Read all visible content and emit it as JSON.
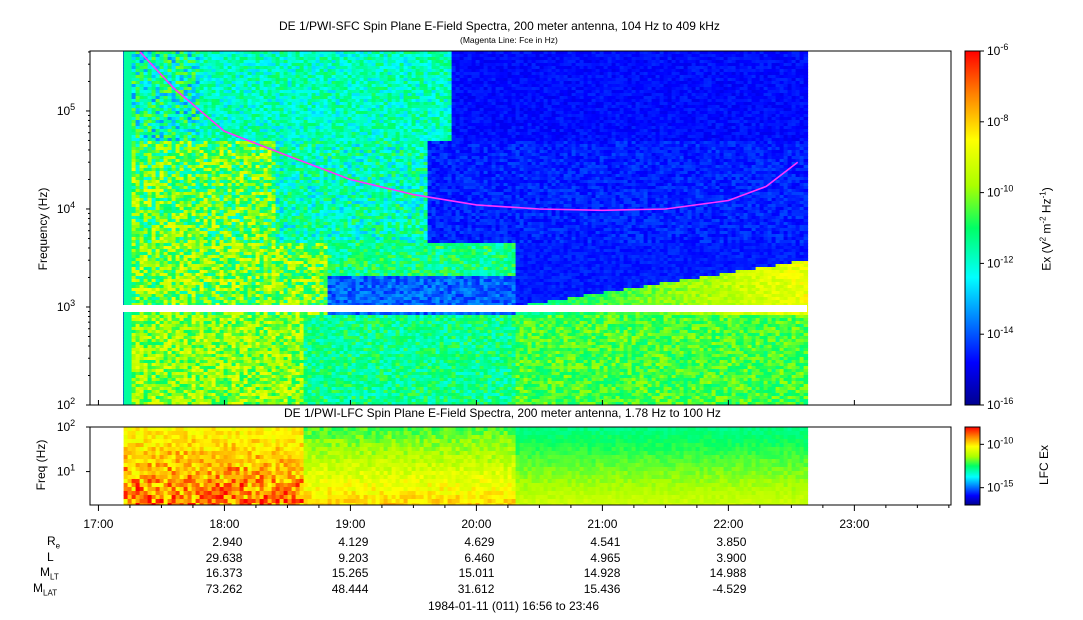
{
  "chart_data": [
    {
      "type": "heatmap",
      "title": "DE 1/PWI-SFC  Spin Plane E-Field Spectra, 200 meter antenna, 104 Hz to 409 kHz",
      "subtitle": "(Magenta Line: Fce in Hz)",
      "ylabel": "Frequency (Hz)",
      "yscale": "log",
      "ylim": [
        100,
        409000
      ],
      "yticks": [
        {
          "value": 100,
          "base": "10",
          "exp": "2"
        },
        {
          "value": 1000,
          "base": "10",
          "exp": "3"
        },
        {
          "value": 10000,
          "base": "10",
          "exp": "4"
        },
        {
          "value": 100000,
          "base": "10",
          "exp": "5"
        }
      ],
      "colorbar": {
        "label": "Ex (V² m⁻² Hz⁻¹)",
        "label_parts": {
          "a": "Ex (V",
          "b": "2",
          "c": " m",
          "d": "-2",
          "e": " Hz",
          "f": "-1",
          "g": ")"
        },
        "scale": "log",
        "range": [
          1e-16,
          1e-06
        ],
        "ticks": [
          {
            "value": 1e-06,
            "base": "10",
            "exp": "-6"
          },
          {
            "value": 1e-08,
            "base": "10",
            "exp": "-8"
          },
          {
            "value": 1e-10,
            "base": "10",
            "exp": "-10"
          },
          {
            "value": 1e-12,
            "base": "10",
            "exp": "-12"
          },
          {
            "value": 1e-14,
            "base": "10",
            "exp": "-14"
          },
          {
            "value": 1e-16,
            "base": "10",
            "exp": "-16"
          }
        ]
      },
      "fce_line": {
        "color": "#ff33ff",
        "hours": [
          17.33,
          17.6,
          18.0,
          18.5,
          19.0,
          19.5,
          20.0,
          20.5,
          21.0,
          21.5,
          22.0,
          22.3,
          22.55
        ],
        "freq_hz": [
          400000,
          170000,
          62000,
          35000,
          20000,
          14000,
          11000,
          10000,
          9700,
          10000,
          12200,
          17000,
          30000
        ]
      },
      "data_start_hour": 17.2,
      "data_end_hour": 22.6
    },
    {
      "type": "heatmap",
      "title": "DE 1/PWI-LFC  Spin Plane E-Field Spectra, 200 meter antenna, 1.78 Hz to 100 Hz",
      "ylabel": "Freq (Hz)",
      "yscale": "log",
      "ylim": [
        1.78,
        100
      ],
      "yticks": [
        {
          "value": 10,
          "base": "10",
          "exp": "1"
        },
        {
          "value": 100,
          "base": "10",
          "exp": "2"
        }
      ],
      "colorbar": {
        "label": "LFC Ex",
        "scale": "log",
        "ticks": [
          {
            "value": 1e-10,
            "base": "10",
            "exp": "-10"
          },
          {
            "value": 1e-15,
            "base": "10",
            "exp": "-15"
          }
        ]
      }
    }
  ],
  "xaxis": {
    "ticks": [
      {
        "hour": 17,
        "label": "17:00"
      },
      {
        "hour": 18,
        "label": "18:00"
      },
      {
        "hour": 19,
        "label": "19:00"
      },
      {
        "hour": 20,
        "label": "20:00"
      },
      {
        "hour": 21,
        "label": "21:00"
      },
      {
        "hour": 22,
        "label": "22:00"
      },
      {
        "hour": 23,
        "label": "23:00"
      }
    ],
    "range_hours": [
      16.933,
      23.767
    ]
  },
  "ephemeris": {
    "rows": [
      {
        "name": "R",
        "sub": "e",
        "values": [
          "2.940",
          "4.129",
          "4.629",
          "4.541",
          "3.850"
        ]
      },
      {
        "name": "L",
        "sub": "",
        "values": [
          "29.638",
          "9.203",
          "6.460",
          "4.965",
          "3.900"
        ]
      },
      {
        "name": "M",
        "sub": "LT",
        "values": [
          "16.373",
          "15.265",
          "15.011",
          "14.928",
          "14.988"
        ]
      },
      {
        "name": "M",
        "sub": "LAT",
        "values": [
          "73.262",
          "48.444",
          "31.612",
          "15.436",
          "-4.529"
        ]
      }
    ]
  },
  "footer": "1984-01-11 (011) 16:56 to 23:46"
}
